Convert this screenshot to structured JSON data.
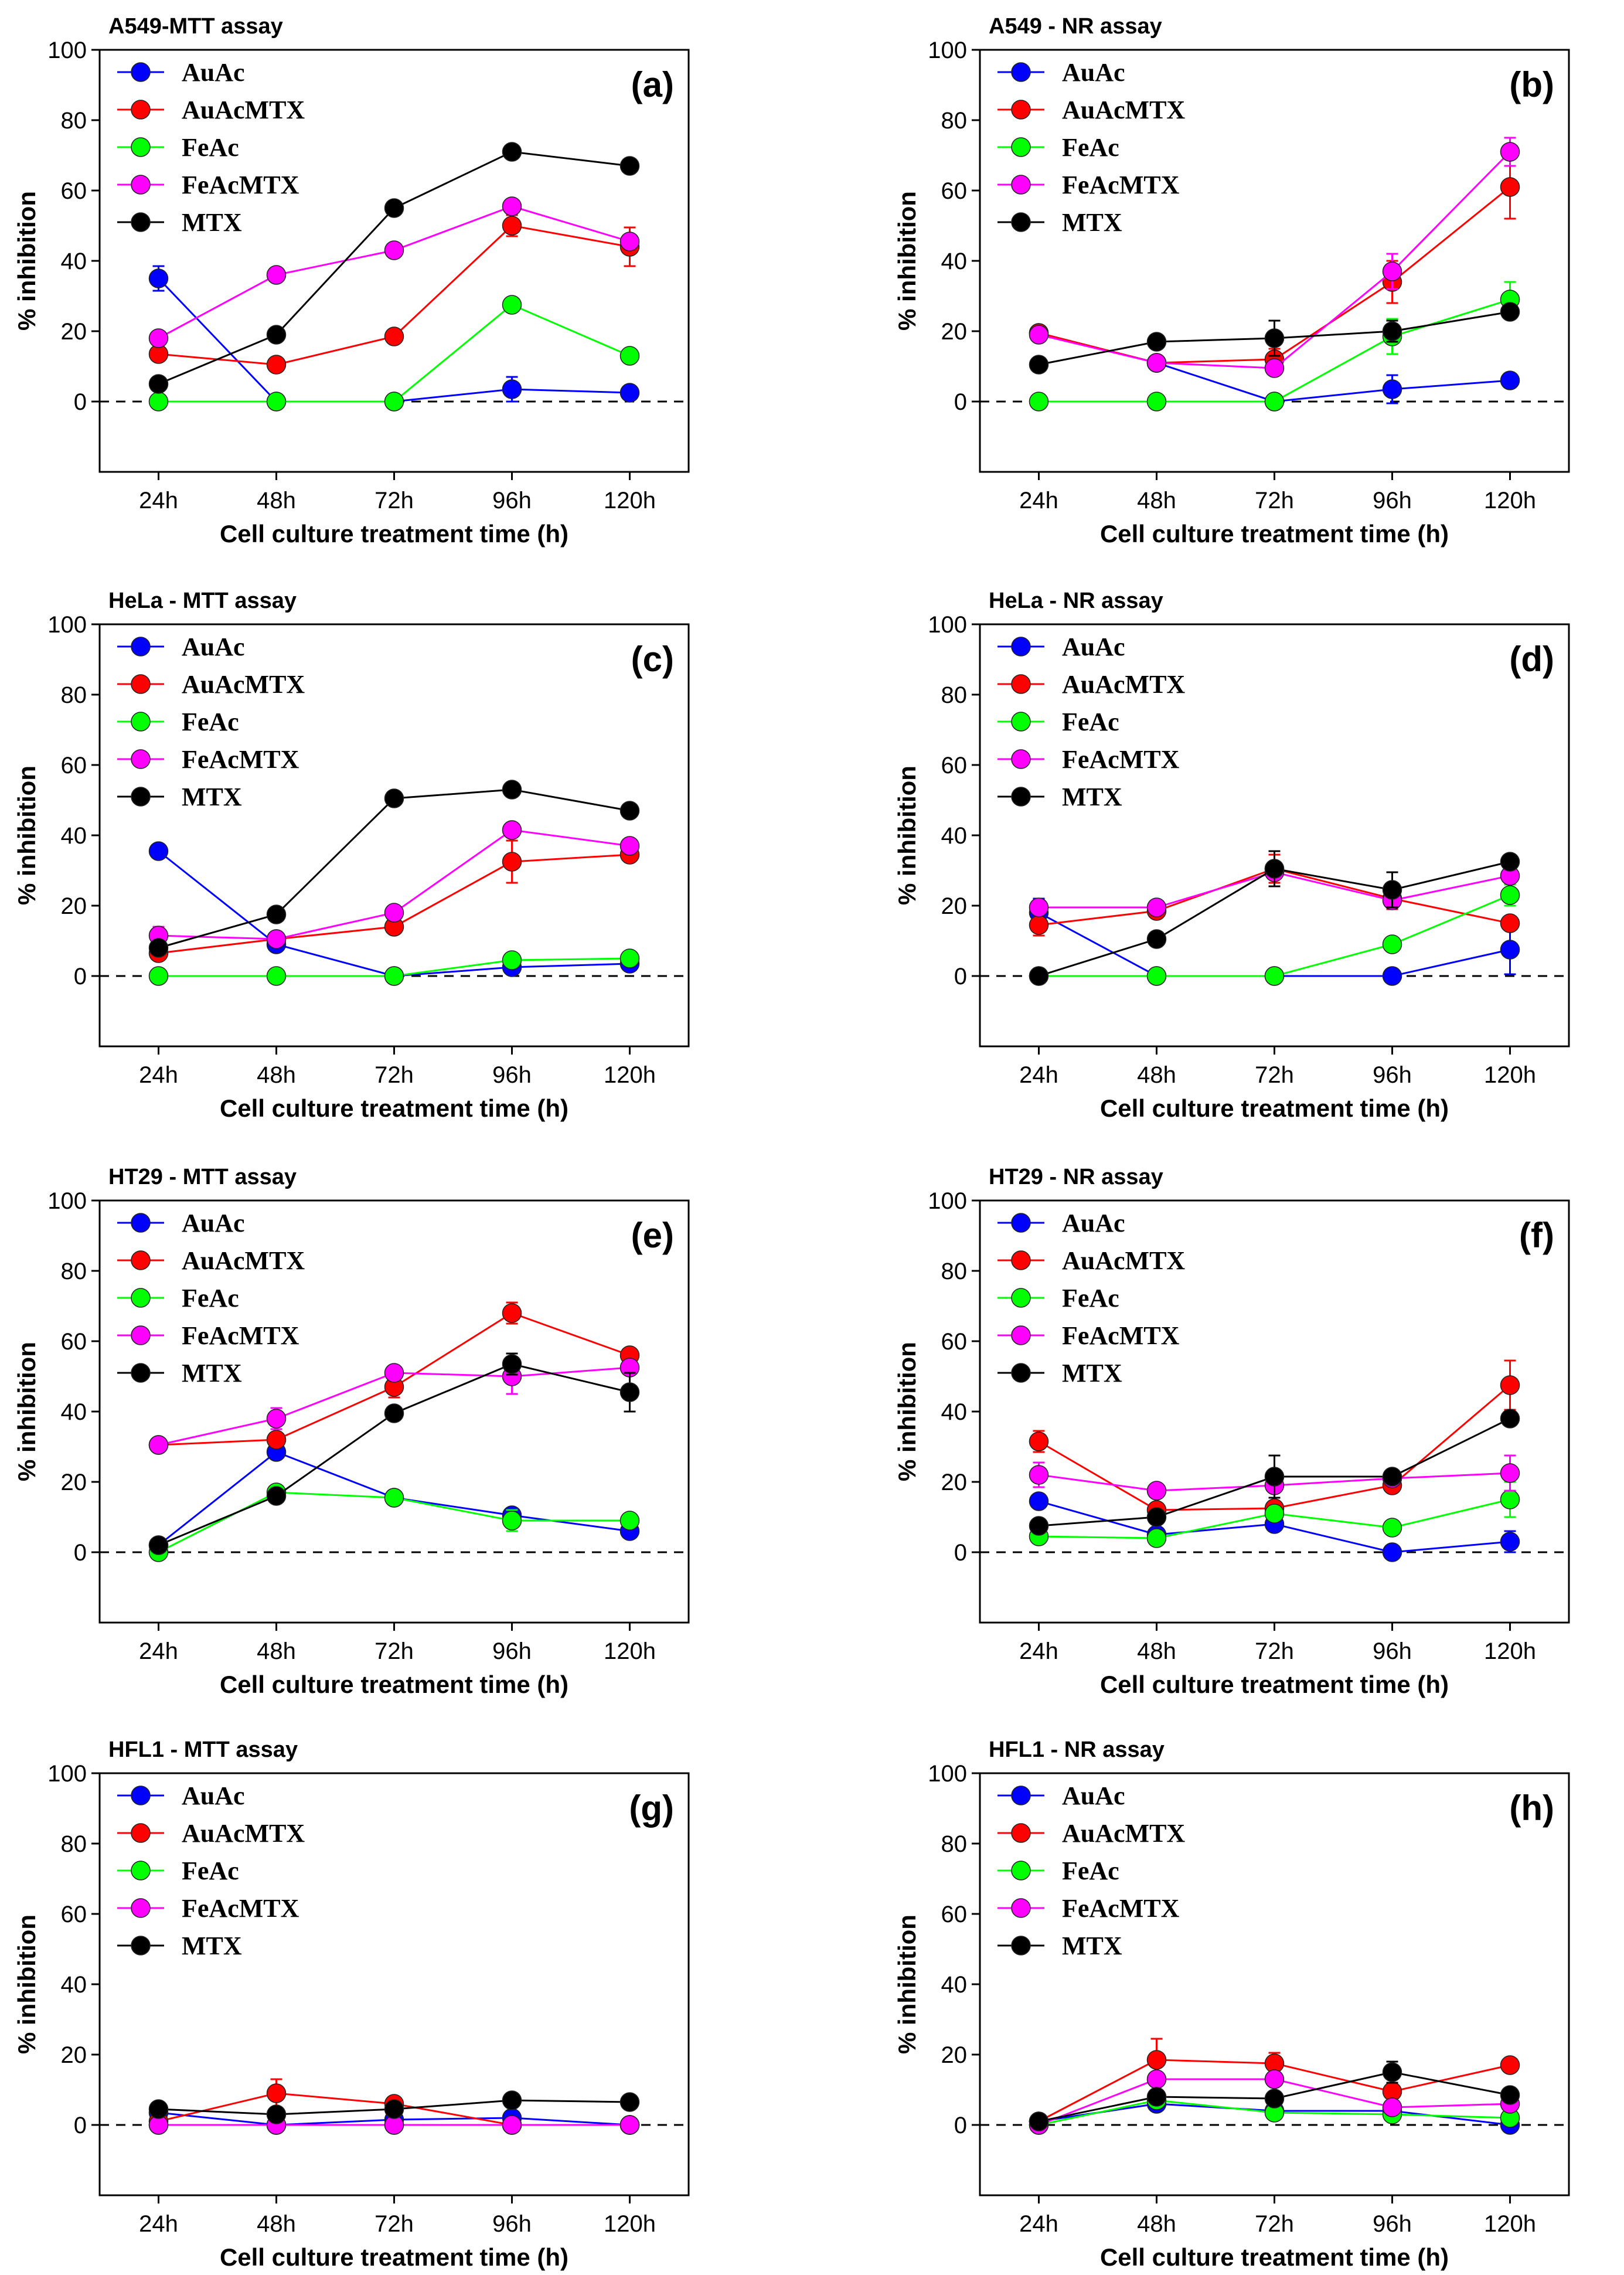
{
  "figure": {
    "series_names": [
      "AuAc",
      "AuAcMTX",
      "FeAc",
      "FeAcMTX",
      "MTX"
    ],
    "series_colors": {
      "AuAc": "#0000ff",
      "AuAcMTX": "#ff0000",
      "FeAc": "#00ff00",
      "FeAcMTX": "#ff00ff",
      "MTX": "#000000"
    }
  },
  "chart_data": [
    {
      "type": "line",
      "title": "A549-MTT assay",
      "panel": "(a)",
      "xlabel": "Cell culture treatment time (h)",
      "ylabel": "% inhibition",
      "categories": [
        "24h",
        "48h",
        "72h",
        "96h",
        "120h"
      ],
      "ylim": [
        -20,
        100
      ],
      "yticks": [
        0,
        20,
        40,
        60,
        80,
        100
      ],
      "series": [
        {
          "name": "AuAc",
          "values": [
            35,
            0,
            0,
            3.5,
            2.5
          ],
          "errors": [
            3.5,
            0,
            0,
            3.5,
            1
          ]
        },
        {
          "name": "AuAcMTX",
          "values": [
            13.5,
            10.5,
            18.5,
            50,
            44
          ],
          "errors": [
            1.5,
            1,
            1,
            3,
            5.5
          ]
        },
        {
          "name": "FeAc",
          "values": [
            0,
            0,
            0,
            27.5,
            13
          ],
          "errors": [
            0,
            0,
            0,
            1.5,
            1
          ]
        },
        {
          "name": "FeAcMTX",
          "values": [
            18,
            36,
            43,
            55.5,
            45.5
          ],
          "errors": [
            1.5,
            1.5,
            1,
            2,
            2
          ]
        },
        {
          "name": "MTX",
          "values": [
            5,
            19,
            55,
            71,
            67
          ],
          "errors": [
            1,
            1,
            1,
            1,
            1
          ]
        }
      ]
    },
    {
      "type": "line",
      "title": "A549 - NR assay",
      "panel": "(b)",
      "xlabel": "Cell culture treatment time (h)",
      "ylabel": "% inhibition",
      "categories": [
        "24h",
        "48h",
        "72h",
        "96h",
        "120h"
      ],
      "ylim": [
        -20,
        100
      ],
      "yticks": [
        0,
        20,
        40,
        60,
        80,
        100
      ],
      "series": [
        {
          "name": "AuAc",
          "values": [
            19.5,
            11,
            0,
            3.5,
            6
          ],
          "errors": [
            1.5,
            1,
            0,
            4,
            1
          ]
        },
        {
          "name": "AuAcMTX",
          "values": [
            19.5,
            11,
            12,
            34,
            61
          ],
          "errors": [
            1.5,
            1,
            3,
            6,
            9
          ]
        },
        {
          "name": "FeAc",
          "values": [
            0,
            0,
            0,
            18.5,
            29
          ],
          "errors": [
            0,
            0,
            0,
            5,
            5
          ]
        },
        {
          "name": "FeAcMTX",
          "values": [
            19,
            11,
            9.5,
            37,
            71
          ],
          "errors": [
            1,
            1,
            2,
            5,
            4
          ]
        },
        {
          "name": "MTX",
          "values": [
            10.5,
            17,
            18,
            20,
            25.5
          ],
          "errors": [
            1,
            1,
            5,
            3,
            1.5
          ]
        }
      ]
    },
    {
      "type": "line",
      "title": "HeLa - MTT assay",
      "panel": "(c)",
      "xlabel": "Cell culture treatment time (h)",
      "ylabel": "% inhibition",
      "categories": [
        "24h",
        "48h",
        "72h",
        "96h",
        "120h"
      ],
      "ylim": [
        -20,
        100
      ],
      "yticks": [
        0,
        20,
        40,
        60,
        80,
        100
      ],
      "series": [
        {
          "name": "AuAc",
          "values": [
            35.5,
            9,
            0,
            2.5,
            3.5
          ],
          "errors": [
            1,
            1,
            0,
            1,
            1
          ]
        },
        {
          "name": "AuAcMTX",
          "values": [
            6.5,
            10.5,
            14,
            32.5,
            34.5
          ],
          "errors": [
            1,
            1,
            1,
            6,
            1
          ]
        },
        {
          "name": "FeAc",
          "values": [
            0,
            0,
            0,
            4.5,
            5
          ],
          "errors": [
            0,
            0,
            0,
            1,
            1
          ]
        },
        {
          "name": "FeAcMTX",
          "values": [
            11.5,
            10.5,
            18,
            41.5,
            37
          ],
          "errors": [
            2.5,
            1,
            1,
            1.5,
            1
          ]
        },
        {
          "name": "MTX",
          "values": [
            8,
            17.5,
            50.5,
            53,
            47
          ],
          "errors": [
            1,
            1,
            1,
            1,
            1
          ]
        }
      ]
    },
    {
      "type": "line",
      "title": "HeLa - NR assay",
      "panel": "(d)",
      "xlabel": "Cell culture treatment time (h)",
      "ylabel": "% inhibition",
      "categories": [
        "24h",
        "48h",
        "72h",
        "96h",
        "120h"
      ],
      "ylim": [
        -20,
        100
      ],
      "yticks": [
        0,
        20,
        40,
        60,
        80,
        100
      ],
      "series": [
        {
          "name": "AuAc",
          "values": [
            18,
            0,
            0,
            0,
            7.5
          ],
          "errors": [
            4,
            0,
            0,
            0,
            7
          ]
        },
        {
          "name": "AuAcMTX",
          "values": [
            14.5,
            18.5,
            30.5,
            22,
            15
          ],
          "errors": [
            3,
            1,
            4,
            3,
            1
          ]
        },
        {
          "name": "FeAc",
          "values": [
            0,
            0,
            0,
            9,
            23
          ],
          "errors": [
            0,
            0,
            0,
            1,
            3
          ]
        },
        {
          "name": "FeAcMTX",
          "values": [
            19.5,
            19.5,
            29.5,
            21.5,
            28.5
          ],
          "errors": [
            1,
            1.5,
            1,
            1,
            1
          ]
        },
        {
          "name": "MTX",
          "values": [
            0,
            10.5,
            30.5,
            24.5,
            32.5
          ],
          "errors": [
            0,
            1,
            5,
            5,
            1
          ]
        }
      ]
    },
    {
      "type": "line",
      "title": "HT29 - MTT assay",
      "panel": "(e)",
      "xlabel": "Cell culture treatment time (h)",
      "ylabel": "% inhibition",
      "categories": [
        "24h",
        "48h",
        "72h",
        "96h",
        "120h"
      ],
      "ylim": [
        -20,
        100
      ],
      "yticks": [
        0,
        20,
        40,
        60,
        80,
        100
      ],
      "series": [
        {
          "name": "AuAc",
          "values": [
            2,
            28.5,
            15.5,
            10.5,
            6
          ],
          "errors": [
            1,
            1,
            1,
            1,
            1
          ]
        },
        {
          "name": "AuAcMTX",
          "values": [
            30.5,
            32,
            47,
            68,
            56
          ],
          "errors": [
            1,
            1,
            3,
            3,
            1
          ]
        },
        {
          "name": "FeAc",
          "values": [
            0,
            17,
            15.5,
            9,
            9
          ],
          "errors": [
            0,
            1,
            1,
            3,
            1
          ]
        },
        {
          "name": "FeAcMTX",
          "values": [
            30.5,
            38,
            51,
            50,
            52.5
          ],
          "errors": [
            1,
            3,
            1,
            5,
            1
          ]
        },
        {
          "name": "MTX",
          "values": [
            2,
            16,
            39.5,
            53.5,
            45.5
          ],
          "errors": [
            1,
            1,
            1,
            3,
            5.5
          ]
        }
      ]
    },
    {
      "type": "line",
      "title": "HT29 - NR assay",
      "panel": "(f)",
      "xlabel": "Cell culture treatment time (h)",
      "ylabel": "% inhibition",
      "categories": [
        "24h",
        "48h",
        "72h",
        "96h",
        "120h"
      ],
      "ylim": [
        -20,
        100
      ],
      "yticks": [
        0,
        20,
        40,
        60,
        80,
        100
      ],
      "series": [
        {
          "name": "AuAc",
          "values": [
            14.5,
            5,
            8,
            0,
            3
          ],
          "errors": [
            1,
            1,
            1,
            0,
            3
          ]
        },
        {
          "name": "AuAcMTX",
          "values": [
            31.5,
            12,
            12.5,
            19,
            47.5
          ],
          "errors": [
            3,
            1,
            1,
            1,
            7
          ]
        },
        {
          "name": "FeAc",
          "values": [
            4.5,
            4,
            11,
            7,
            15
          ],
          "errors": [
            1,
            1,
            1,
            1,
            5
          ]
        },
        {
          "name": "FeAcMTX",
          "values": [
            22,
            17.5,
            19,
            21,
            22.5
          ],
          "errors": [
            3.5,
            1,
            1,
            1,
            5
          ]
        },
        {
          "name": "MTX",
          "values": [
            7.5,
            10,
            21.5,
            21.5,
            38
          ],
          "errors": [
            1,
            1,
            6,
            1,
            1.5
          ]
        }
      ]
    },
    {
      "type": "line",
      "title": "HFL1 - MTT assay",
      "panel": "(g)",
      "xlabel": "Cell culture treatment time (h)",
      "ylabel": "% inhibition",
      "categories": [
        "24h",
        "48h",
        "72h",
        "96h",
        "120h"
      ],
      "ylim": [
        -20,
        100
      ],
      "yticks": [
        0,
        20,
        40,
        60,
        80,
        100
      ],
      "series": [
        {
          "name": "AuAc",
          "values": [
            3.5,
            0,
            1.5,
            2,
            0
          ],
          "errors": [
            1,
            0,
            1,
            1,
            0
          ]
        },
        {
          "name": "AuAcMTX",
          "values": [
            1,
            9,
            6,
            0,
            0
          ],
          "errors": [
            1,
            4,
            1,
            0,
            0
          ]
        },
        {
          "name": "FeAc",
          "values": [
            0,
            0,
            0,
            0,
            0
          ],
          "errors": [
            0,
            0,
            0,
            0,
            0
          ]
        },
        {
          "name": "FeAcMTX",
          "values": [
            0,
            0,
            0,
            0,
            0
          ],
          "errors": [
            0,
            0,
            0,
            0,
            0
          ]
        },
        {
          "name": "MTX",
          "values": [
            4.5,
            3,
            4.5,
            7,
            6.5
          ],
          "errors": [
            1,
            1,
            1,
            1,
            1
          ]
        }
      ]
    },
    {
      "type": "line",
      "title": "HFL1 - NR assay",
      "panel": "(h)",
      "xlabel": "Cell culture treatment time (h)",
      "ylabel": "% inhibition",
      "categories": [
        "24h",
        "48h",
        "72h",
        "96h",
        "120h"
      ],
      "ylim": [
        -20,
        100
      ],
      "yticks": [
        0,
        20,
        40,
        60,
        80,
        100
      ],
      "series": [
        {
          "name": "AuAc",
          "values": [
            1,
            6,
            4,
            4,
            0
          ],
          "errors": [
            1,
            1,
            1,
            1,
            0
          ]
        },
        {
          "name": "AuAcMTX",
          "values": [
            1,
            18.5,
            17.5,
            9.5,
            17
          ],
          "errors": [
            1,
            6,
            3,
            1,
            1
          ]
        },
        {
          "name": "FeAc",
          "values": [
            0,
            7,
            3.5,
            3,
            2
          ],
          "errors": [
            0,
            1,
            1,
            1,
            1
          ]
        },
        {
          "name": "FeAcMTX",
          "values": [
            0,
            13,
            13,
            5,
            6
          ],
          "errors": [
            0,
            1,
            1,
            1,
            1
          ]
        },
        {
          "name": "MTX",
          "values": [
            1,
            8,
            7.5,
            15,
            8.5
          ],
          "errors": [
            1,
            1,
            1,
            3,
            1
          ]
        }
      ]
    }
  ]
}
